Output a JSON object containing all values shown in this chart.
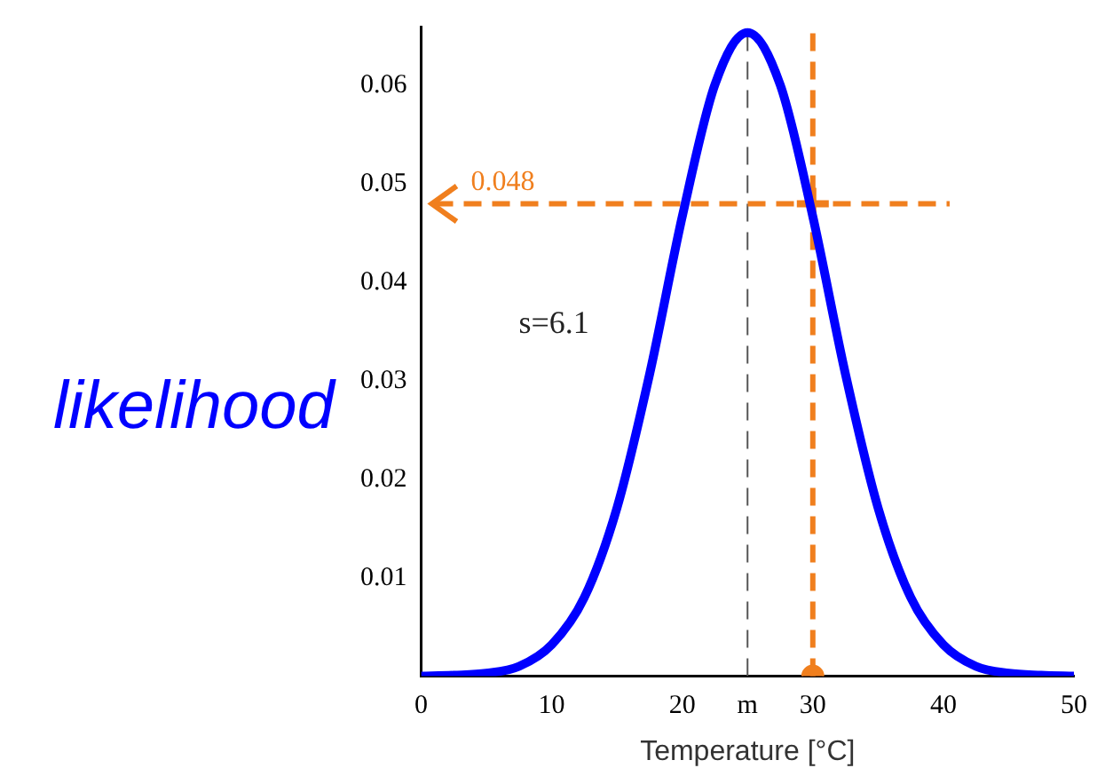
{
  "chart_data": {
    "type": "line",
    "xlabel": "Temperature [°C]",
    "ylabel": "likelihood",
    "xlim": [
      0,
      50
    ],
    "ylim": [
      0,
      0.066
    ],
    "xticks": [
      0,
      10,
      20,
      {
        "value": 25,
        "label": "m"
      },
      30,
      40,
      50
    ],
    "yticks": [
      0.01,
      0.02,
      0.03,
      0.04,
      0.05,
      0.06
    ],
    "grid": false,
    "legend": false,
    "marker": "none",
    "line_style": "solid",
    "series": [
      {
        "color": "#0000ff",
        "x": [
          0,
          2.5,
          5,
          7.5,
          10,
          12.5,
          15,
          17.5,
          20,
          22.5,
          25,
          27.5,
          30,
          32.5,
          35,
          37.5,
          40,
          42.5,
          45,
          47.5,
          50
        ],
        "values": [
          0,
          0.0001,
          0.0003,
          0.001,
          0.0032,
          0.008,
          0.0171,
          0.0307,
          0.0467,
          0.0601,
          0.0654,
          0.0601,
          0.0467,
          0.0307,
          0.0171,
          0.008,
          0.0032,
          0.001,
          0.0003,
          0.0001,
          0
        ]
      },
      {
        "type": "scatter",
        "color": "#f07f1e",
        "marker": "circle",
        "x": [
          30
        ],
        "values": [
          0
        ]
      },
      {
        "type": "scatter",
        "color": "#f07f1e",
        "marker": "cross",
        "x": [
          30
        ],
        "values": [
          0.048
        ]
      }
    ],
    "ref_lines": [
      {
        "axis": "x",
        "value": 25,
        "color": "#555555",
        "line_style": "dashed"
      },
      {
        "axis": "x",
        "value": 30,
        "color": "#f07f1e",
        "line_style": "dashed"
      },
      {
        "axis": "y",
        "value": 0.048,
        "label": "0.048",
        "color": "#f07f1e",
        "line_style": "dashed"
      }
    ],
    "annotations": [
      "s=6.1"
    ]
  }
}
